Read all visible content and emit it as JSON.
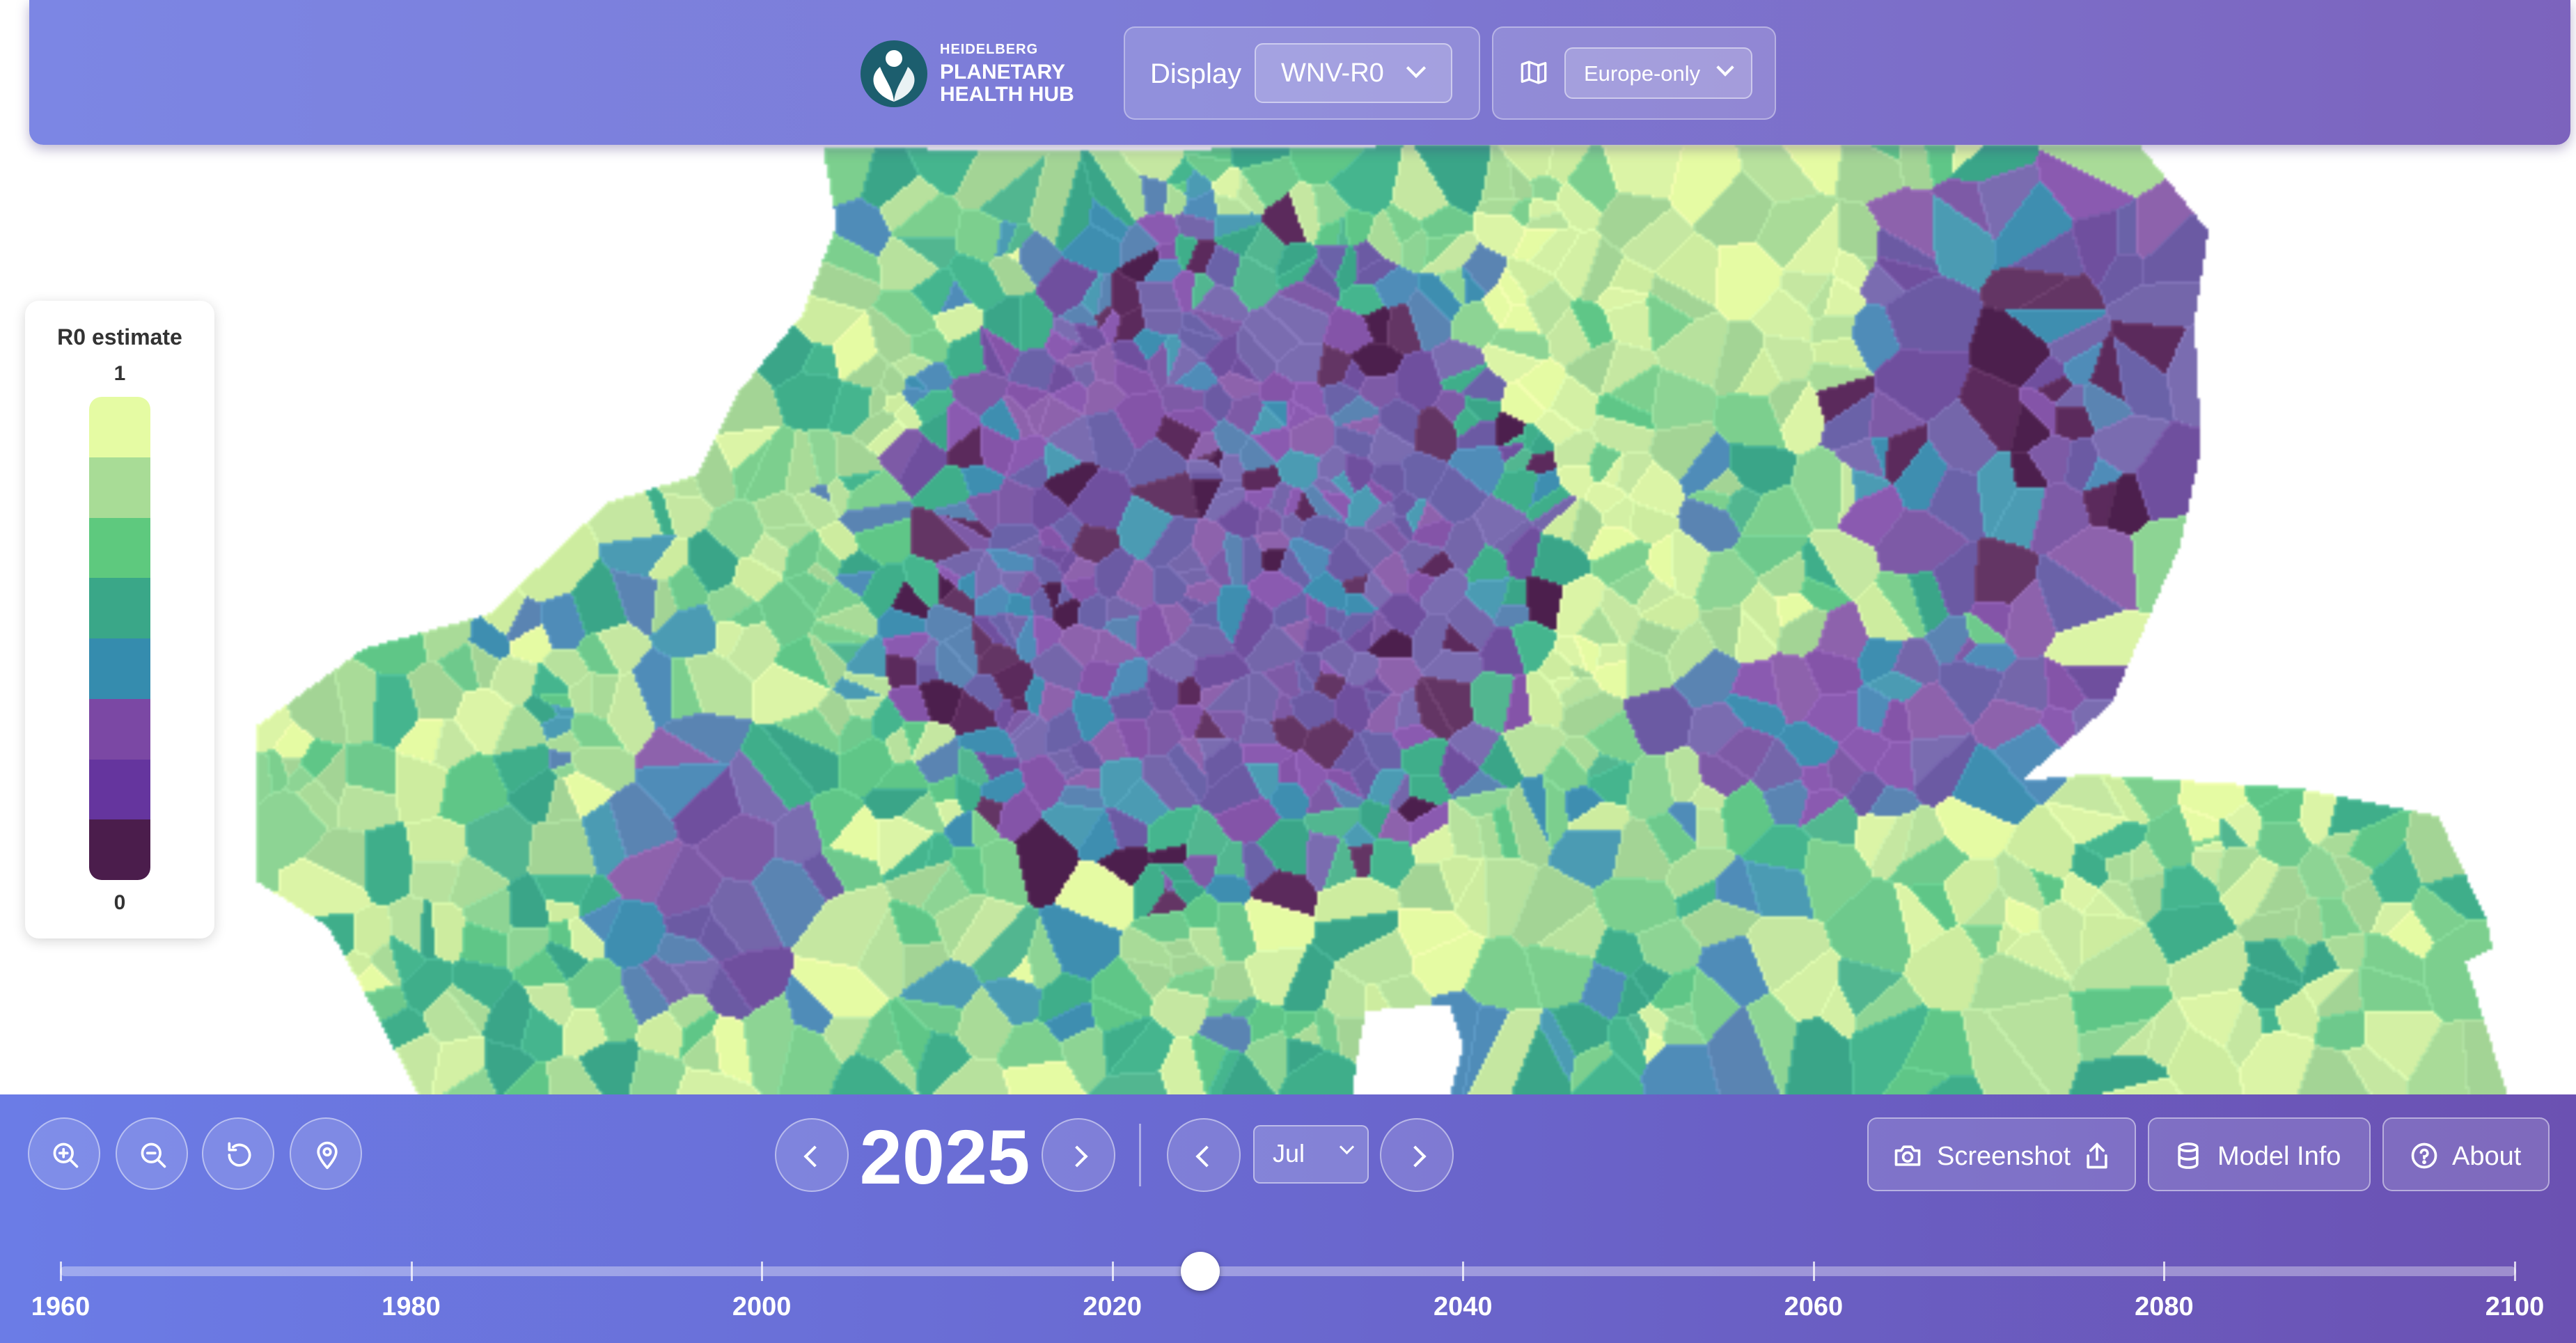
{
  "brand": {
    "small": "HEIDELBERG",
    "line1": "PLANETARY",
    "line2": "HEALTH HUB"
  },
  "display": {
    "label": "Display",
    "value": "WNV-R0"
  },
  "region": {
    "value": "Europe-only",
    "icon": "map-icon"
  },
  "legend": {
    "title": "R0 estimate",
    "max_label": "1",
    "min_label": "0",
    "colors": [
      "#e5fba3",
      "#a8dc96",
      "#5ec97e",
      "#3aa788",
      "#358cae",
      "#7b48a4",
      "#65359e",
      "#4b1d4c"
    ]
  },
  "map_colors": {
    "purple": [
      "#7d5aa6",
      "#8a5ab0",
      "#6f4f9e",
      "#7466aa",
      "#8d62ac",
      "#7a6cb0",
      "#6b5aa3",
      "#8454a8",
      "#6a62a8"
    ],
    "dark": [
      "#4c1f4d",
      "#5b2a5c",
      "#633564"
    ],
    "blue": [
      "#3e8eb0",
      "#4b9bb3",
      "#5a84b2",
      "#4f8cb8"
    ],
    "green_dark": [
      "#3fae8a",
      "#45b58e",
      "#52b690",
      "#3aa588"
    ],
    "green": [
      "#6ec98c",
      "#7ccf8e",
      "#5fc687",
      "#8dd494"
    ],
    "light": [
      "#a9db98",
      "#b7e19d",
      "#c5e7a1",
      "#a3d495"
    ],
    "pale": [
      "#dbf4a6",
      "#e5fba3",
      "#d3f0a4",
      "#cdec9f"
    ]
  },
  "controls": {
    "zoom_in_icon": "zoom-in-icon",
    "zoom_out_icon": "zoom-out-icon",
    "reset_icon": "reset-icon",
    "locate_icon": "location-pin-icon"
  },
  "year": "2025",
  "month": "Jul",
  "buttons": {
    "screenshot": "Screenshot",
    "model_info": "Model Info",
    "about": "About"
  },
  "timeline": {
    "ticks": [
      "1960",
      "1980",
      "2000",
      "2020",
      "2040",
      "2060",
      "2080",
      "2100"
    ],
    "min": 1960,
    "max": 2100,
    "value": 2025
  }
}
